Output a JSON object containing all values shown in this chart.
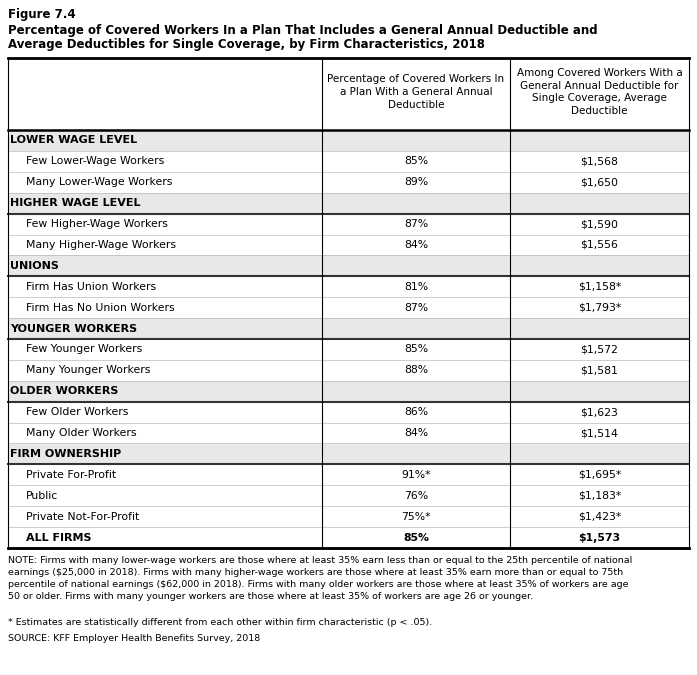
{
  "figure_label": "Figure 7.4",
  "title_line1": "Percentage of Covered Workers In a Plan That Includes a General Annual Deductible and",
  "title_line2": "Average Deductibles for Single Coverage, by Firm Characteristics, 2018",
  "col1_header": "Percentage of Covered Workers In\na Plan With a General Annual\nDeductible",
  "col2_header": "Among Covered Workers With a\nGeneral Annual Deductible for\nSingle Coverage, Average\nDeductible",
  "rows": [
    {
      "label": "LOWER WAGE LEVEL",
      "bold": true,
      "header": true,
      "col1": "",
      "col2": ""
    },
    {
      "label": "Few Lower-Wage Workers",
      "bold": false,
      "header": false,
      "col1": "85%",
      "col2": "$1,568"
    },
    {
      "label": "Many Lower-Wage Workers",
      "bold": false,
      "header": false,
      "col1": "89%",
      "col2": "$1,650"
    },
    {
      "label": "HIGHER WAGE LEVEL",
      "bold": true,
      "header": true,
      "col1": "",
      "col2": ""
    },
    {
      "label": "Few Higher-Wage Workers",
      "bold": false,
      "header": false,
      "col1": "87%",
      "col2": "$1,590"
    },
    {
      "label": "Many Higher-Wage Workers",
      "bold": false,
      "header": false,
      "col1": "84%",
      "col2": "$1,556"
    },
    {
      "label": "UNIONS",
      "bold": true,
      "header": true,
      "col1": "",
      "col2": ""
    },
    {
      "label": "Firm Has Union Workers",
      "bold": false,
      "header": false,
      "col1": "81%",
      "col2": "$1,158*"
    },
    {
      "label": "Firm Has No Union Workers",
      "bold": false,
      "header": false,
      "col1": "87%",
      "col2": "$1,793*"
    },
    {
      "label": "YOUNGER WORKERS",
      "bold": true,
      "header": true,
      "col1": "",
      "col2": ""
    },
    {
      "label": "Few Younger Workers",
      "bold": false,
      "header": false,
      "col1": "85%",
      "col2": "$1,572"
    },
    {
      "label": "Many Younger Workers",
      "bold": false,
      "header": false,
      "col1": "88%",
      "col2": "$1,581"
    },
    {
      "label": "OLDER WORKERS",
      "bold": true,
      "header": true,
      "col1": "",
      "col2": ""
    },
    {
      "label": "Few Older Workers",
      "bold": false,
      "header": false,
      "col1": "86%",
      "col2": "$1,623"
    },
    {
      "label": "Many Older Workers",
      "bold": false,
      "header": false,
      "col1": "84%",
      "col2": "$1,514"
    },
    {
      "label": "FIRM OWNERSHIP",
      "bold": true,
      "header": true,
      "col1": "",
      "col2": ""
    },
    {
      "label": "Private For-Profit",
      "bold": false,
      "header": false,
      "col1": "91%*",
      "col2": "$1,695*"
    },
    {
      "label": "Public",
      "bold": false,
      "header": false,
      "col1": "76%",
      "col2": "$1,183*"
    },
    {
      "label": "Private Not-For-Profit",
      "bold": false,
      "header": false,
      "col1": "75%*",
      "col2": "$1,423*"
    },
    {
      "label": "ALL FIRMS",
      "bold": true,
      "header": false,
      "col1": "85%",
      "col2": "$1,573"
    }
  ],
  "note": "NOTE: Firms with many lower-wage workers are those where at least 35% earn less than or equal to the 25th percentile of national\nearnings ($25,000 in 2018). Firms with many higher-wage workers are those where at least 35% earn more than or equal to 75th\npercentile of national earnings ($62,000 in 2018). Firms with many older workers are those where at least 35% of workers are age\n50 or older. Firms with many younger workers are those where at least 35% of workers are age 26 or younger.",
  "asterisk_note": "* Estimates are statistically different from each other within firm characteristic (p < .05).",
  "source": "SOURCE: KFF Employer Health Benefits Survey, 2018",
  "bg_color": "#ffffff",
  "text_color": "#000000",
  "header_bg": "#e8e8e8"
}
